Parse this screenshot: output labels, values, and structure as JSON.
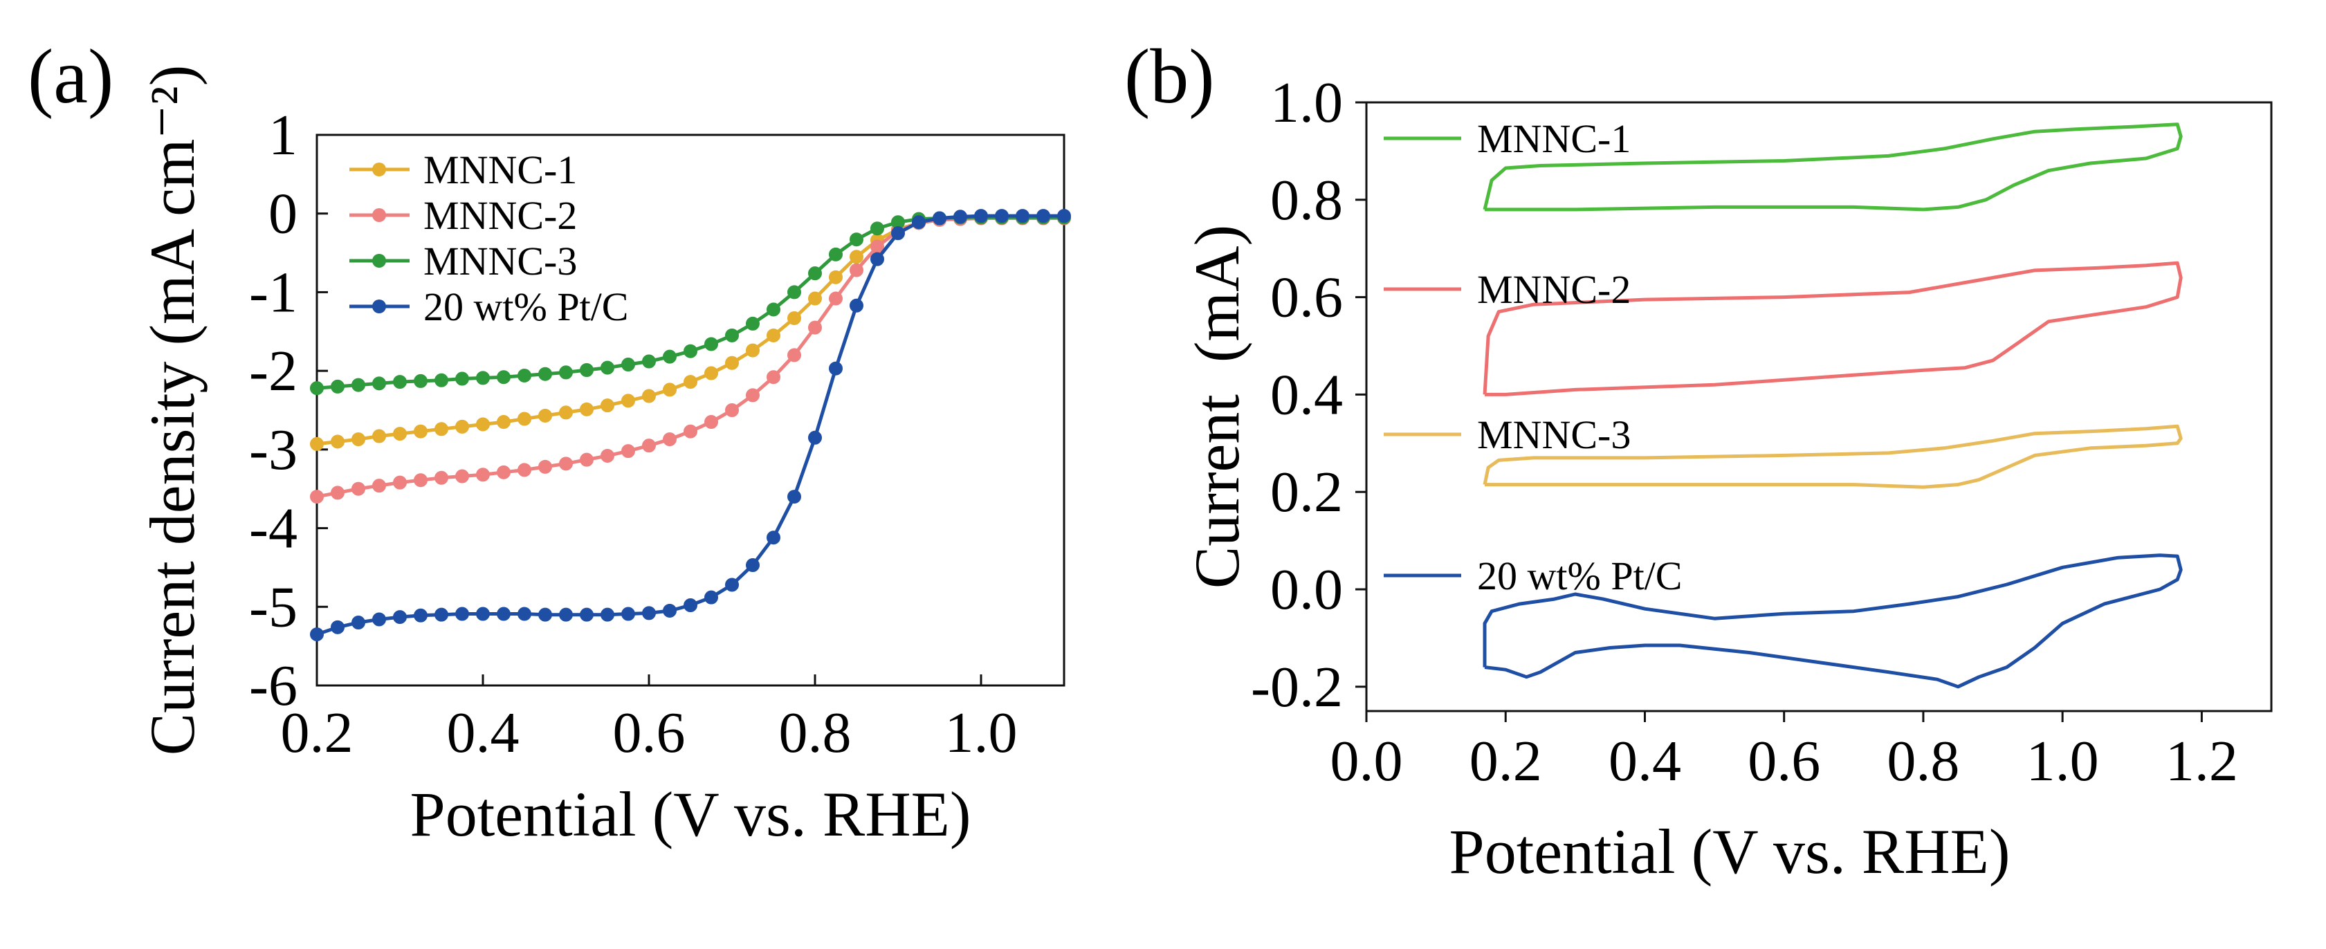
{
  "figure": {
    "panels": [
      "(a)",
      "(b)"
    ]
  },
  "chart_data": [
    {
      "panel": "(a)",
      "type": "line",
      "markers": true,
      "title": "",
      "xlabel": "Potential (V vs. RHE)",
      "ylabel": "Current density (mA cm⁻²)",
      "xlim": [
        0.2,
        1.1
      ],
      "ylim": [
        -6,
        1
      ],
      "xticks": [
        0.2,
        0.4,
        0.6,
        0.8,
        1.0
      ],
      "xtick_labels": [
        "0.2",
        "0.4",
        "0.6",
        "0.8",
        "1.0"
      ],
      "yticks": [
        1,
        0,
        -1,
        -2,
        -3,
        -4,
        -5,
        -6
      ],
      "ytick_labels": [
        "1",
        "0",
        "-1",
        "-2",
        "-3",
        "-4",
        "-5",
        "-6"
      ],
      "legend_position": "top-left",
      "x": [
        0.2,
        0.225,
        0.25,
        0.275,
        0.3,
        0.325,
        0.35,
        0.375,
        0.4,
        0.425,
        0.45,
        0.475,
        0.5,
        0.525,
        0.55,
        0.575,
        0.6,
        0.625,
        0.65,
        0.675,
        0.7,
        0.725,
        0.75,
        0.775,
        0.8,
        0.825,
        0.85,
        0.875,
        0.9,
        0.925,
        0.95,
        0.975,
        1.0,
        1.025,
        1.05,
        1.075,
        1.1
      ],
      "series": [
        {
          "name": "MNNC-1",
          "color": "#E5AE2E",
          "values": [
            -2.93,
            -2.9,
            -2.87,
            -2.83,
            -2.8,
            -2.77,
            -2.74,
            -2.71,
            -2.68,
            -2.65,
            -2.61,
            -2.57,
            -2.53,
            -2.49,
            -2.44,
            -2.38,
            -2.32,
            -2.24,
            -2.14,
            -2.03,
            -1.9,
            -1.74,
            -1.55,
            -1.33,
            -1.08,
            -0.81,
            -0.55,
            -0.34,
            -0.2,
            -0.12,
            -0.08,
            -0.06,
            -0.05,
            -0.05,
            -0.05,
            -0.05,
            -0.05
          ]
        },
        {
          "name": "MNNC-2",
          "color": "#EF8080",
          "values": [
            -3.6,
            -3.55,
            -3.5,
            -3.46,
            -3.42,
            -3.39,
            -3.36,
            -3.34,
            -3.32,
            -3.29,
            -3.26,
            -3.22,
            -3.18,
            -3.13,
            -3.08,
            -3.02,
            -2.95,
            -2.87,
            -2.77,
            -2.65,
            -2.5,
            -2.31,
            -2.08,
            -1.8,
            -1.45,
            -1.08,
            -0.72,
            -0.42,
            -0.22,
            -0.12,
            -0.08,
            -0.07,
            -0.06,
            -0.06,
            -0.06,
            -0.06,
            -0.06
          ]
        },
        {
          "name": "MNNC-3",
          "color": "#2E9A3C",
          "values": [
            -2.22,
            -2.2,
            -2.18,
            -2.16,
            -2.14,
            -2.13,
            -2.12,
            -2.1,
            -2.09,
            -2.08,
            -2.06,
            -2.04,
            -2.02,
            -1.99,
            -1.96,
            -1.92,
            -1.88,
            -1.82,
            -1.75,
            -1.66,
            -1.55,
            -1.4,
            -1.22,
            -1.0,
            -0.76,
            -0.52,
            -0.33,
            -0.19,
            -0.11,
            -0.07,
            -0.06,
            -0.05,
            -0.05,
            -0.05,
            -0.05,
            -0.05,
            -0.05
          ]
        },
        {
          "name": "20 wt% Pt/C",
          "color": "#1F4FA5",
          "values": [
            -5.35,
            -5.26,
            -5.2,
            -5.16,
            -5.13,
            -5.11,
            -5.1,
            -5.09,
            -5.09,
            -5.09,
            -5.09,
            -5.1,
            -5.1,
            -5.1,
            -5.1,
            -5.09,
            -5.08,
            -5.05,
            -4.98,
            -4.88,
            -4.72,
            -4.47,
            -4.12,
            -3.6,
            -2.85,
            -1.97,
            -1.17,
            -0.58,
            -0.25,
            -0.11,
            -0.06,
            -0.04,
            -0.03,
            -0.03,
            -0.03,
            -0.03,
            -0.03
          ]
        }
      ]
    },
    {
      "panel": "(b)",
      "type": "line",
      "markers": false,
      "title": "",
      "xlabel": "Potential (V vs. RHE)",
      "ylabel": "Current  (mA)",
      "xlim": [
        0.0,
        1.3
      ],
      "ylim": [
        -0.25,
        1.0
      ],
      "xticks": [
        0.0,
        0.2,
        0.4,
        0.6,
        0.8,
        1.0,
        1.2
      ],
      "xtick_labels": [
        "0.0",
        "0.2",
        "0.4",
        "0.6",
        "0.8",
        "1.0",
        "1.2"
      ],
      "yticks": [
        1.0,
        0.8,
        0.6,
        0.4,
        0.2,
        0.0,
        -0.2
      ],
      "ytick_labels": [
        "1.0",
        "0.8",
        "0.6",
        "0.4",
        "0.2",
        "0.0",
        "-0.2"
      ],
      "legend_position": "inline-left",
      "series": [
        {
          "name": "MNNC-1",
          "color": "#4CBB3C",
          "x": [
            0.17,
            0.18,
            0.2,
            0.25,
            0.4,
            0.6,
            0.75,
            0.83,
            0.9,
            0.96,
            1.02,
            1.1,
            1.165,
            1.17,
            1.165,
            1.12,
            1.04,
            0.98,
            0.93,
            0.89,
            0.85,
            0.8,
            0.7,
            0.5,
            0.3,
            0.2,
            0.17,
            0.17
          ],
          "values": [
            0.78,
            0.84,
            0.865,
            0.87,
            0.875,
            0.88,
            0.89,
            0.905,
            0.925,
            0.94,
            0.945,
            0.95,
            0.955,
            0.93,
            0.905,
            0.885,
            0.875,
            0.86,
            0.83,
            0.8,
            0.785,
            0.78,
            0.785,
            0.785,
            0.78,
            0.78,
            0.78,
            0.78
          ]
        },
        {
          "name": "MNNC-2",
          "color": "#EE6F6F",
          "x": [
            0.17,
            0.175,
            0.19,
            0.24,
            0.4,
            0.6,
            0.78,
            0.88,
            0.96,
            1.05,
            1.12,
            1.165,
            1.17,
            1.165,
            1.12,
            1.05,
            0.98,
            0.94,
            0.9,
            0.86,
            0.8,
            0.7,
            0.5,
            0.3,
            0.2,
            0.17
          ],
          "values": [
            0.4,
            0.52,
            0.57,
            0.585,
            0.595,
            0.6,
            0.61,
            0.635,
            0.655,
            0.66,
            0.665,
            0.67,
            0.64,
            0.6,
            0.58,
            0.565,
            0.55,
            0.51,
            0.47,
            0.455,
            0.45,
            0.44,
            0.42,
            0.41,
            0.4,
            0.4
          ]
        },
        {
          "name": "MNNC-3",
          "color": "#E8BB5A",
          "x": [
            0.17,
            0.175,
            0.19,
            0.24,
            0.4,
            0.6,
            0.75,
            0.83,
            0.9,
            0.96,
            1.05,
            1.12,
            1.165,
            1.17,
            1.165,
            1.12,
            1.04,
            0.96,
            0.92,
            0.88,
            0.85,
            0.8,
            0.7,
            0.5,
            0.3,
            0.2,
            0.17
          ],
          "values": [
            0.215,
            0.25,
            0.265,
            0.27,
            0.27,
            0.275,
            0.28,
            0.29,
            0.305,
            0.32,
            0.325,
            0.33,
            0.335,
            0.31,
            0.3,
            0.295,
            0.29,
            0.275,
            0.25,
            0.225,
            0.215,
            0.21,
            0.215,
            0.215,
            0.215,
            0.215,
            0.215
          ]
        },
        {
          "name": "20 wt% Pt/C",
          "color": "#1F4FA5",
          "x": [
            0.17,
            0.17,
            0.18,
            0.22,
            0.27,
            0.3,
            0.34,
            0.4,
            0.5,
            0.6,
            0.7,
            0.78,
            0.85,
            0.92,
            1.0,
            1.08,
            1.14,
            1.165,
            1.17,
            1.165,
            1.14,
            1.06,
            1.0,
            0.96,
            0.92,
            0.88,
            0.85,
            0.82,
            0.75,
            0.65,
            0.55,
            0.45,
            0.4,
            0.35,
            0.3,
            0.25,
            0.23,
            0.2,
            0.17
          ],
          "values": [
            -0.16,
            -0.07,
            -0.045,
            -0.03,
            -0.02,
            -0.01,
            -0.02,
            -0.04,
            -0.06,
            -0.05,
            -0.045,
            -0.03,
            -0.015,
            0.01,
            0.045,
            0.065,
            0.07,
            0.068,
            0.04,
            0.02,
            0.0,
            -0.03,
            -0.07,
            -0.12,
            -0.16,
            -0.18,
            -0.2,
            -0.185,
            -0.17,
            -0.15,
            -0.13,
            -0.115,
            -0.115,
            -0.12,
            -0.13,
            -0.17,
            -0.18,
            -0.165,
            -0.16
          ]
        }
      ]
    }
  ]
}
